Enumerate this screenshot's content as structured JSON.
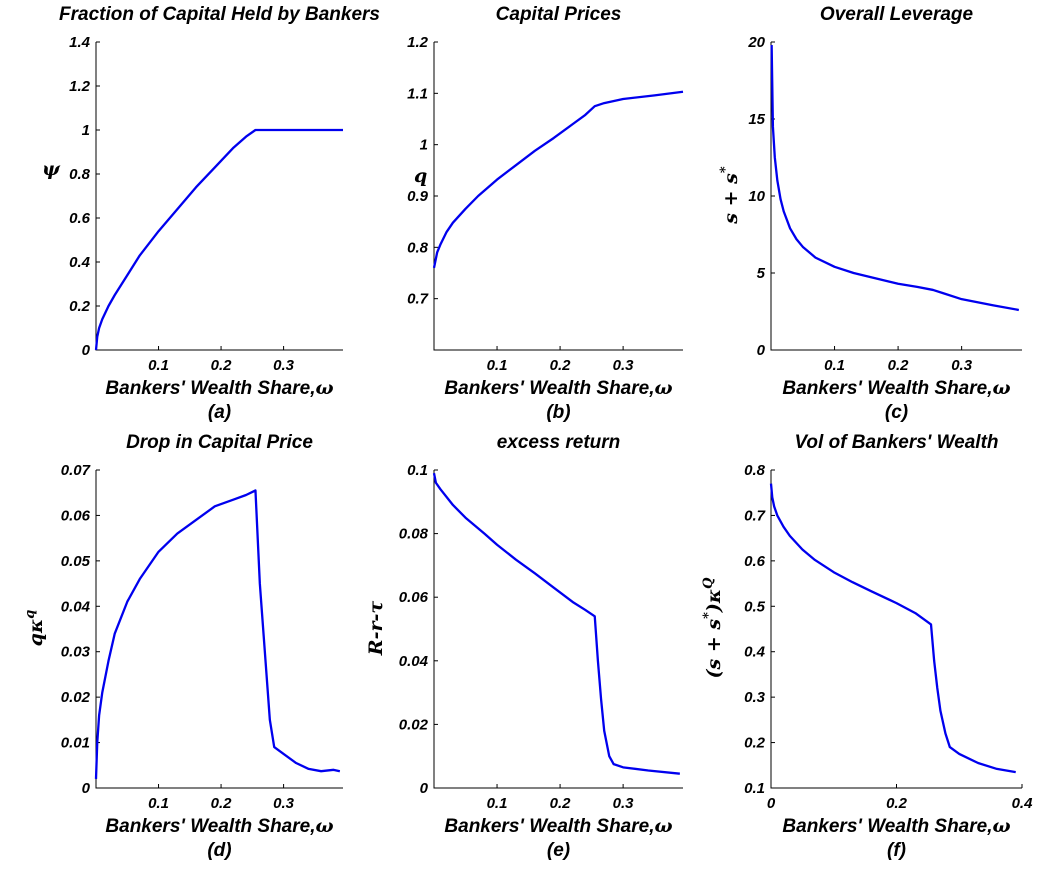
{
  "figure": {
    "xlabel_text": "Bankers' Wealth Share,",
    "xlabel_symbol": "ω"
  },
  "colors": {
    "series": "#0000ee",
    "axes": "#000000"
  },
  "chart_data": [
    {
      "id": "a",
      "type": "line",
      "title": "Fraction of Capital Held by Bankers",
      "caption": "(a)",
      "ylabel": [
        {
          "t": "ψ"
        }
      ],
      "xlim": [
        0,
        0.395
      ],
      "ylim": [
        0,
        1.4
      ],
      "xticks": [
        0.1,
        0.2,
        0.3
      ],
      "xtick_labels": [
        "0.1",
        "0.2",
        "0.3"
      ],
      "yticks": [
        0,
        0.2,
        0.4,
        0.6,
        0.8,
        1,
        1.2,
        1.4
      ],
      "ytick_labels": [
        "0",
        "0.2",
        "0.4",
        "0.6",
        "0.8",
        "1",
        "1.2",
        "1.4"
      ],
      "series": [
        {
          "x": [
            0,
            0.002,
            0.005,
            0.01,
            0.02,
            0.03,
            0.05,
            0.07,
            0.1,
            0.13,
            0.16,
            0.19,
            0.22,
            0.24,
            0.255,
            0.27,
            0.3,
            0.35,
            0.395
          ],
          "y": [
            0,
            0.06,
            0.1,
            0.14,
            0.2,
            0.25,
            0.34,
            0.43,
            0.54,
            0.64,
            0.74,
            0.83,
            0.92,
            0.97,
            1.0,
            1.0,
            1.0,
            1.0,
            1.0
          ]
        }
      ]
    },
    {
      "id": "b",
      "type": "line",
      "title": "Capital Prices",
      "caption": "(b)",
      "ylabel": [
        {
          "t": "q"
        }
      ],
      "xlim": [
        0,
        0.395
      ],
      "ylim": [
        0.6,
        1.2
      ],
      "xticks": [
        0.1,
        0.2,
        0.3
      ],
      "xtick_labels": [
        "0.1",
        "0.2",
        "0.3"
      ],
      "yticks": [
        0.7,
        0.8,
        0.9,
        1.0,
        1.1,
        1.2
      ],
      "ytick_labels": [
        "0.7",
        "0.8",
        "0.9",
        "1",
        "1.1",
        "1.2"
      ],
      "series": [
        {
          "x": [
            0,
            0.005,
            0.01,
            0.02,
            0.03,
            0.05,
            0.07,
            0.1,
            0.13,
            0.16,
            0.19,
            0.22,
            0.24,
            0.255,
            0.27,
            0.3,
            0.35,
            0.395
          ],
          "y": [
            0.76,
            0.79,
            0.805,
            0.83,
            0.848,
            0.875,
            0.9,
            0.932,
            0.96,
            0.988,
            1.013,
            1.04,
            1.058,
            1.075,
            1.081,
            1.089,
            1.096,
            1.103
          ]
        }
      ]
    },
    {
      "id": "c",
      "type": "line",
      "title": "Overall Leverage",
      "caption": "(c)",
      "ylabel": [
        {
          "t": "s + s"
        },
        {
          "t": "*",
          "sup": true
        }
      ],
      "xlim": [
        0,
        0.395
      ],
      "ylim": [
        0,
        20
      ],
      "xticks": [
        0.1,
        0.2,
        0.3
      ],
      "xtick_labels": [
        "0.1",
        "0.2",
        "0.3"
      ],
      "yticks": [
        0,
        5,
        10,
        15,
        20
      ],
      "ytick_labels": [
        "0",
        "5",
        "10",
        "15",
        "20"
      ],
      "series": [
        {
          "x": [
            0.001,
            0.003,
            0.006,
            0.01,
            0.015,
            0.02,
            0.03,
            0.04,
            0.05,
            0.07,
            0.1,
            0.13,
            0.16,
            0.2,
            0.23,
            0.255,
            0.27,
            0.3,
            0.35,
            0.39
          ],
          "y": [
            19.8,
            14.5,
            12.5,
            11.0,
            9.8,
            9.0,
            7.9,
            7.2,
            6.7,
            6.0,
            5.4,
            5.0,
            4.7,
            4.3,
            4.1,
            3.9,
            3.7,
            3.3,
            2.9,
            2.6
          ]
        }
      ]
    },
    {
      "id": "d",
      "type": "line",
      "title": "Drop in Capital Price",
      "caption": "(d)",
      "ylabel": [
        {
          "t": "qκ"
        },
        {
          "t": "q",
          "sup": true
        }
      ],
      "xlim": [
        0,
        0.395
      ],
      "ylim": [
        0,
        0.07
      ],
      "xticks": [
        0.1,
        0.2,
        0.3
      ],
      "xtick_labels": [
        "0.1",
        "0.2",
        "0.3"
      ],
      "yticks": [
        0,
        0.01,
        0.02,
        0.03,
        0.04,
        0.05,
        0.06,
        0.07
      ],
      "ytick_labels": [
        "0",
        "0.01",
        "0.02",
        "0.03",
        "0.04",
        "0.05",
        "0.06",
        "0.07"
      ],
      "series": [
        {
          "x": [
            0,
            0.002,
            0.005,
            0.01,
            0.02,
            0.03,
            0.05,
            0.07,
            0.1,
            0.13,
            0.16,
            0.19,
            0.22,
            0.24,
            0.255,
            0.262,
            0.27,
            0.278,
            0.285,
            0.3,
            0.32,
            0.34,
            0.36,
            0.38,
            0.39
          ],
          "y": [
            0.002,
            0.01,
            0.016,
            0.021,
            0.028,
            0.034,
            0.041,
            0.046,
            0.052,
            0.056,
            0.059,
            0.062,
            0.0635,
            0.0645,
            0.0655,
            0.045,
            0.03,
            0.015,
            0.009,
            0.0075,
            0.0055,
            0.0042,
            0.0037,
            0.004,
            0.0037
          ]
        }
      ]
    },
    {
      "id": "e",
      "type": "line",
      "title": "excess return",
      "caption": "(e)",
      "ylabel": [
        {
          "t": "R-r-τ"
        }
      ],
      "xlim": [
        0,
        0.395
      ],
      "ylim": [
        0,
        0.1
      ],
      "xticks": [
        0.1,
        0.2,
        0.3
      ],
      "xtick_labels": [
        "0.1",
        "0.2",
        "0.3"
      ],
      "yticks": [
        0,
        0.02,
        0.04,
        0.06,
        0.08,
        0.1
      ],
      "ytick_labels": [
        "0",
        "0.02",
        "0.04",
        "0.06",
        "0.08",
        "0.1"
      ],
      "series": [
        {
          "x": [
            0,
            0.003,
            0.01,
            0.03,
            0.05,
            0.08,
            0.1,
            0.13,
            0.16,
            0.19,
            0.22,
            0.24,
            0.255,
            0.26,
            0.265,
            0.27,
            0.278,
            0.285,
            0.3,
            0.34,
            0.39
          ],
          "y": [
            0.099,
            0.096,
            0.094,
            0.089,
            0.085,
            0.08,
            0.0765,
            0.0718,
            0.0675,
            0.063,
            0.0585,
            0.056,
            0.054,
            0.04,
            0.028,
            0.018,
            0.01,
            0.0075,
            0.0065,
            0.0055,
            0.0045
          ]
        }
      ]
    },
    {
      "id": "f",
      "type": "line",
      "title": "Vol of Bankers' Wealth",
      "caption": "(f)",
      "ylabel": [
        {
          "t": "(s + s"
        },
        {
          "t": "*",
          "sup": true
        },
        {
          "t": ")κ"
        },
        {
          "t": "Q",
          "sup": true
        }
      ],
      "xlim": [
        0,
        0.4
      ],
      "ylim": [
        0.1,
        0.8
      ],
      "xticks": [
        0,
        0.2,
        0.4
      ],
      "xtick_labels": [
        "0",
        "0.2",
        "0.4"
      ],
      "yticks": [
        0.1,
        0.2,
        0.3,
        0.4,
        0.5,
        0.6,
        0.7,
        0.8
      ],
      "ytick_labels": [
        "0.1",
        "0.2",
        "0.3",
        "0.4",
        "0.5",
        "0.6",
        "0.7",
        "0.8"
      ],
      "series": [
        {
          "x": [
            0,
            0.002,
            0.005,
            0.01,
            0.02,
            0.03,
            0.05,
            0.07,
            0.1,
            0.13,
            0.16,
            0.2,
            0.23,
            0.255,
            0.26,
            0.265,
            0.27,
            0.278,
            0.285,
            0.3,
            0.33,
            0.36,
            0.39
          ],
          "y": [
            0.77,
            0.74,
            0.72,
            0.7,
            0.675,
            0.655,
            0.625,
            0.602,
            0.575,
            0.553,
            0.533,
            0.507,
            0.485,
            0.46,
            0.38,
            0.32,
            0.27,
            0.22,
            0.19,
            0.175,
            0.155,
            0.142,
            0.135
          ]
        }
      ]
    }
  ]
}
